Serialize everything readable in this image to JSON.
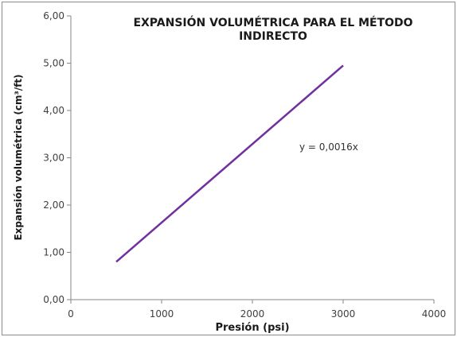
{
  "chart_data": {
    "type": "line",
    "title_lines": [
      "EXPANSIÓN VOLUMÉTRICA PARA EL MÉTODO",
      "INDIRECTO"
    ],
    "xlabel": "Presión (psi)",
    "ylabel": "Expansión volumétrica (cm³/ft)",
    "xlim": [
      0,
      4000
    ],
    "ylim": [
      0,
      6
    ],
    "x_ticks": [
      "0",
      "1000",
      "2000",
      "3000",
      "4000"
    ],
    "y_ticks": [
      "0,00",
      "1,00",
      "2,00",
      "3,00",
      "4,00",
      "5,00",
      "6,00"
    ],
    "series": [
      {
        "color": "#7030a0",
        "x": [
          500,
          3000
        ],
        "y": [
          0.8,
          4.95
        ]
      }
    ],
    "annotation": "y = 0,0016x",
    "grid": false,
    "legend": "none"
  }
}
